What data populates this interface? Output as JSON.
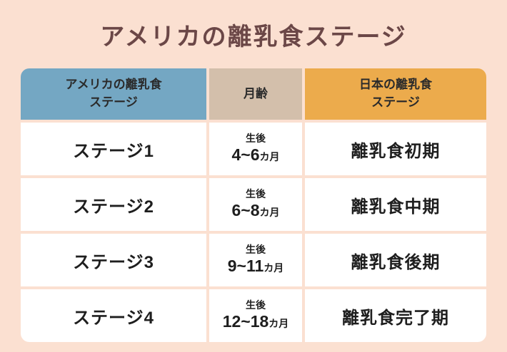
{
  "page": {
    "title": "アメリカの離乳食ステージ",
    "background_color": "#fbe0d1",
    "title_color": "#6b4747"
  },
  "colors": {
    "header_us": "#74a7c3",
    "header_age": "#d3bfab",
    "header_jp": "#ecab4c",
    "row_background": "#ffffff",
    "cell_text": "#1e1e1e"
  },
  "table": {
    "headers": {
      "us": {
        "line1": "アメリカの離乳食",
        "line2": "ステージ"
      },
      "age": {
        "line1": "月齢"
      },
      "jp": {
        "line1": "日本の離乳食",
        "line2": "ステージ"
      }
    },
    "rows": [
      {
        "us_stage": "ステージ1",
        "age_prefix": "生後",
        "age_range": "4~6",
        "age_unit": "カ月",
        "jp_stage": "離乳食初期"
      },
      {
        "us_stage": "ステージ2",
        "age_prefix": "生後",
        "age_range": "6~8",
        "age_unit": "カ月",
        "jp_stage": "離乳食中期"
      },
      {
        "us_stage": "ステージ3",
        "age_prefix": "生後",
        "age_range": "9~11",
        "age_unit": "カ月",
        "jp_stage": "離乳食後期"
      },
      {
        "us_stage": "ステージ4",
        "age_prefix": "生後",
        "age_range": "12~18",
        "age_unit": "カ月",
        "jp_stage": "離乳食完了期"
      }
    ]
  },
  "chart_data": {
    "type": "table",
    "title": "アメリカの離乳食ステージ",
    "columns": [
      "アメリカの離乳食ステージ",
      "月齢",
      "日本の離乳食ステージ"
    ],
    "rows": [
      [
        "ステージ1",
        "生後4~6カ月",
        "離乳食初期"
      ],
      [
        "ステージ2",
        "生後6~8カ月",
        "離乳食中期"
      ],
      [
        "ステージ3",
        "生後9~11カ月",
        "離乳食後期"
      ],
      [
        "ステージ4",
        "生後12~18カ月",
        "離乳食完了期"
      ]
    ]
  }
}
